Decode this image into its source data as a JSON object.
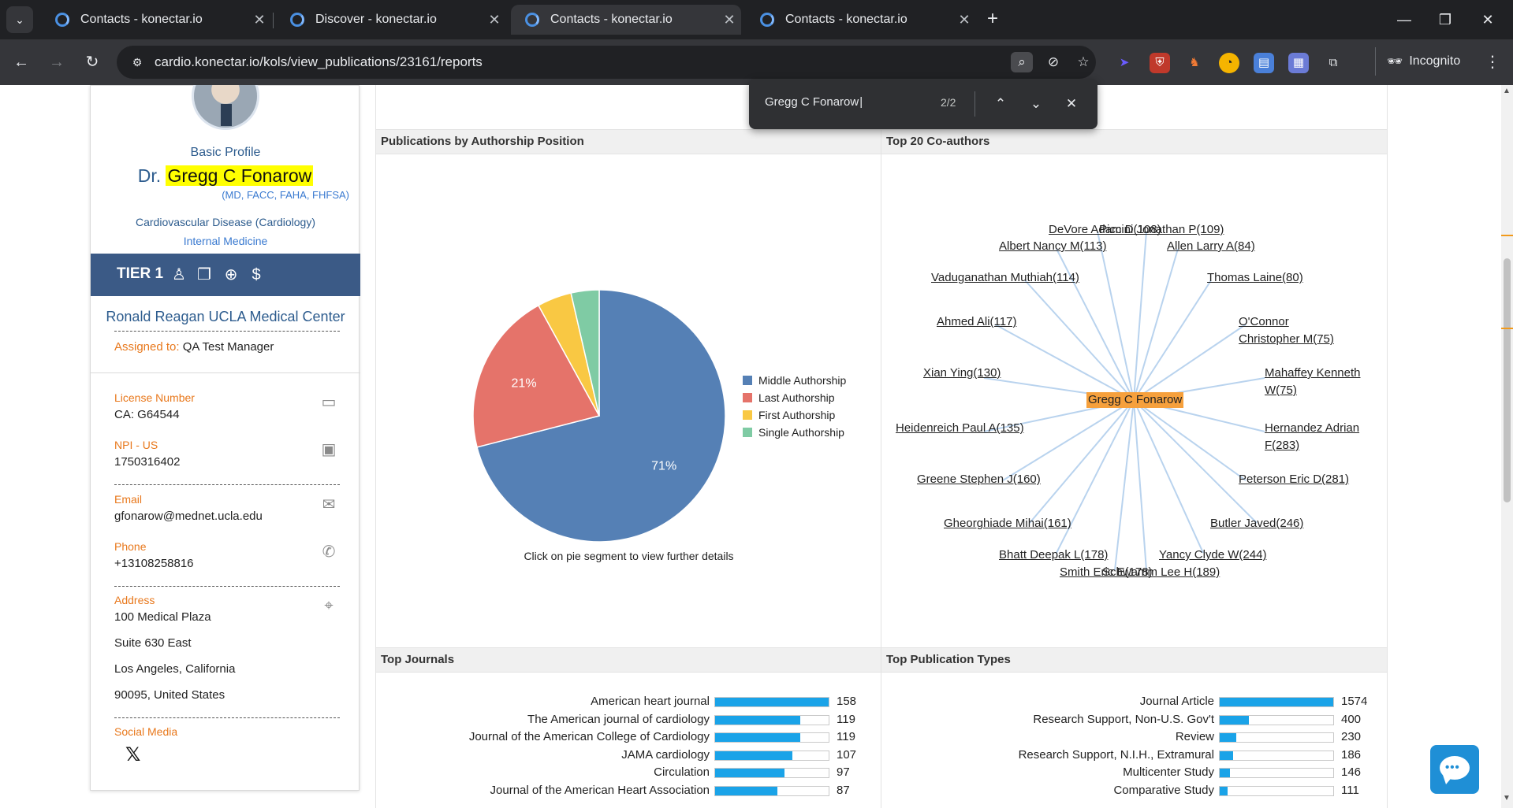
{
  "browser": {
    "tabs": [
      {
        "title": "Contacts - konectar.io",
        "active": false
      },
      {
        "title": "Discover - konectar.io",
        "active": false
      },
      {
        "title": "Contacts - konectar.io",
        "active": true
      },
      {
        "title": "Contacts - konectar.io",
        "active": false
      }
    ],
    "url": "cardio.konectar.io/kols/view_publications/23161/reports",
    "incognito_label": "Incognito"
  },
  "find": {
    "query": "Gregg C Fonarow",
    "count": "2/2"
  },
  "profile": {
    "section_label": "Basic Profile",
    "name_prefix": "Dr.",
    "name": "Gregg C Fonarow",
    "qualifications": "(MD, FACC, FAHA, FHFSA)",
    "specialty": "Cardiovascular Disease (Cardiology)",
    "specialty2": "Internal Medicine",
    "tier": "TIER 1",
    "organization": "Ronald Reagan UCLA Medical Center",
    "assigned_label": "Assigned to:",
    "assigned_value": "QA Test Manager",
    "license_label": "License Number",
    "license_value": "CA: G64544",
    "npi_label": "NPI - US",
    "npi_value": "1750316402",
    "email_label": "Email",
    "email_value": "gfonarow@mednet.ucla.edu",
    "phone_label": "Phone",
    "phone_value": "+13108258816",
    "address_label": "Address",
    "address_lines": [
      "100 Medical Plaza",
      "Suite 630 East",
      "Los Angeles, California",
      "90095, United States"
    ],
    "social_label": "Social Media"
  },
  "panels": {
    "authorship_title": "Publications by Authorship Position",
    "coauthors_title": "Top 20 Co-authors",
    "journals_title": "Top Journals",
    "pubtypes_title": "Top Publication Types",
    "pie_caption": "Click on pie segment to view further details"
  },
  "colors": {
    "middle": "#5580b5",
    "last": "#e5736a",
    "first": "#f9c843",
    "single": "#7fcba4",
    "bar": "#1aa3e8",
    "network_line": "#b9d3ee",
    "center_node": "#f6a03c"
  },
  "chart_data": [
    {
      "type": "pie",
      "title": "Publications by Authorship Position",
      "slices": [
        {
          "name": "Middle Authorship",
          "value": 71,
          "label": "71%"
        },
        {
          "name": "Last Authorship",
          "value": 21,
          "label": "21%"
        },
        {
          "name": "First Authorship",
          "value": 4.4,
          "label": ""
        },
        {
          "name": "Single Authorship",
          "value": 3.6,
          "label": ""
        }
      ]
    },
    {
      "type": "network",
      "title": "Top 20 Co-authors",
      "center": "Gregg C Fonarow",
      "nodes": [
        "DeVore Adam D(108)",
        "Piccini Jonathan P(109)",
        "Allen Larry A(84)",
        "Albert Nancy M(113)",
        "Thomas Laine(80)",
        "Vaduganathan Muthiah(114)",
        "O'Connor Christopher M(75)",
        "Ahmed Ali(117)",
        "Mahaffey Kenneth W(75)",
        "Xian Ying(130)",
        "Hernandez Adrian F(283)",
        "Heidenreich Paul A(135)",
        "Peterson Eric D(281)",
        "Greene Stephen J(160)",
        "Butler Javed(246)",
        "Gheorghiade Mihai(161)",
        "Yancy Clyde W(244)",
        "Bhatt Deepak L(178)",
        "Smith Eric E(178)",
        "Schwamm Lee H(189)"
      ]
    },
    {
      "type": "bar",
      "title": "Top Journals",
      "categories": [
        "American heart journal",
        "The American journal of cardiology",
        "Journal of the American College of Cardiology",
        "JAMA cardiology",
        "Circulation",
        "Journal of the American Heart Association"
      ],
      "values": [
        158,
        119,
        119,
        107,
        97,
        87
      ]
    },
    {
      "type": "bar",
      "title": "Top Publication Types",
      "categories": [
        "Journal Article",
        "Research Support, Non-U.S. Gov't",
        "Review",
        "Research Support, N.I.H., Extramural",
        "Multicenter Study",
        "Comparative Study"
      ],
      "values": [
        1574,
        400,
        230,
        186,
        146,
        111
      ]
    }
  ]
}
